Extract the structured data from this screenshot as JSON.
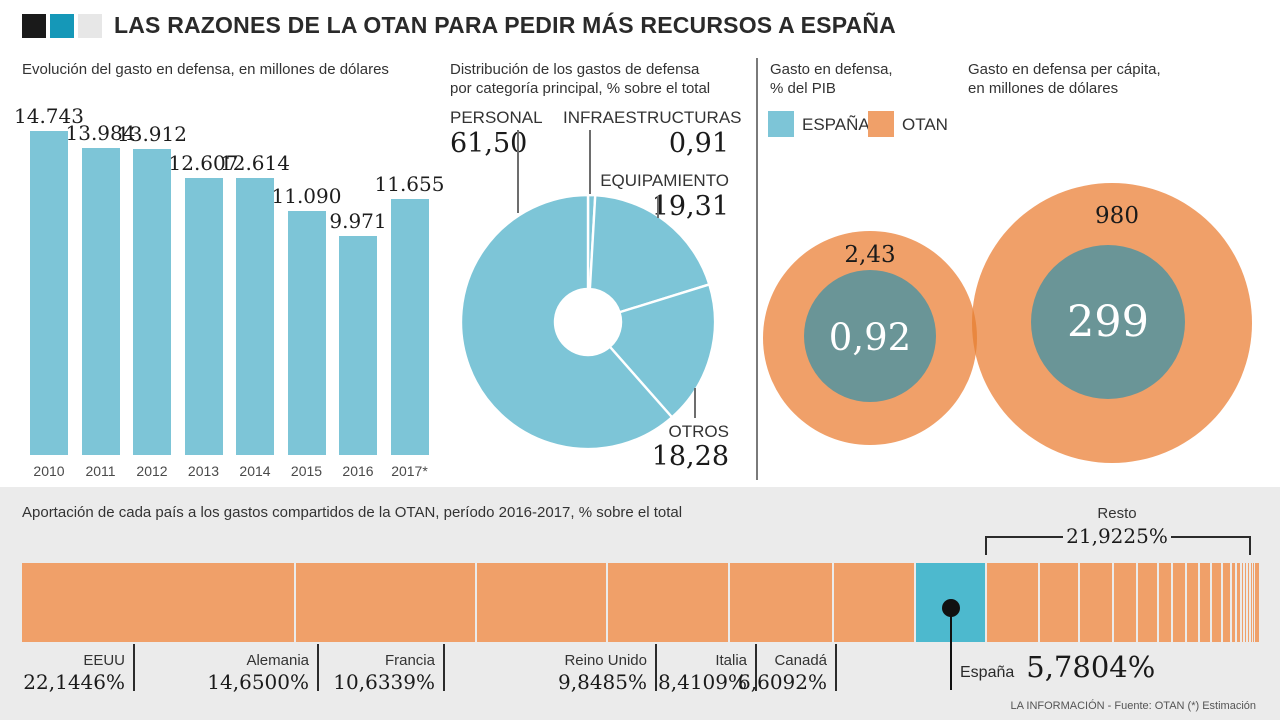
{
  "title": "LAS RAZONES DE LA OTAN PARA PEDIR MÁS RECURSOS A ESPAÑA",
  "colors": {
    "black_square": "#1a1a1a",
    "teal_square": "#1598b8",
    "gray_square": "#e7e7e7",
    "blue": "#7dc5d7",
    "espana_blue": "#4db9ce",
    "orange": "#f0a069",
    "orange_overlap": "#e9873f",
    "inner_circle": "#6a9597",
    "bottom_bg": "#ebebeb"
  },
  "sections": {
    "evolution": {
      "subtitle": "Evolución del gasto en defensa, en millones de dólares"
    },
    "distribution": {
      "subtitle_line1": "Distribución de los gastos de defensa",
      "subtitle_line2": "por categoría principal, % sobre el total"
    },
    "gdp": {
      "title_line1": "Gasto en defensa,",
      "title_line2": "% del PIB",
      "legend": [
        {
          "label": "ESPAÑA"
        },
        {
          "label": "OTAN"
        }
      ]
    },
    "percapita": {
      "title_line1": "Gasto en defensa per cápita,",
      "title_line2": "en millones de dólares"
    },
    "contribution": {
      "subtitle": "Aportación de cada país a los gastos compartidos de la OTAN, período 2016-2017, % sobre el total"
    }
  },
  "footer": "LA INFORMACIÓN - Fuente: OTAN (*) Estimación",
  "chart_data": [
    {
      "type": "bar",
      "title": "Evolución del gasto en defensa, en millones de dólares",
      "categories": [
        "2010",
        "2011",
        "2012",
        "2013",
        "2014",
        "2015",
        "2016",
        "2017*"
      ],
      "values": [
        14743,
        13984,
        13912,
        12607,
        12614,
        11090,
        9971,
        11655
      ],
      "value_labels": [
        "14.743",
        "13.984",
        "13.912",
        "12.607",
        "12.614",
        "11.090",
        "9.971",
        "11.655"
      ],
      "ylim": [
        0,
        14743
      ],
      "grid": false
    },
    {
      "type": "pie",
      "donut": true,
      "title": "Distribución de los gastos de defensa por categoría principal, % sobre el total",
      "labels": [
        "PERSONAL",
        "INFRAESTRUCTURAS",
        "EQUIPAMIENTO",
        "OTROS"
      ],
      "values": [
        61.5,
        0.91,
        19.31,
        18.28
      ],
      "value_labels": [
        "61,50",
        "0,91",
        "19,31",
        "18,28"
      ],
      "start_angle_deg": 0,
      "direction": "clockwise",
      "draw_order": [
        1,
        2,
        3,
        0
      ]
    },
    {
      "type": "bubble",
      "title": "Gasto en defensa, % del PIB",
      "series": [
        {
          "name": "OTAN",
          "value": 2.43,
          "value_label": "2,43"
        },
        {
          "name": "ESPAÑA",
          "value": 0.92,
          "value_label": "0,92"
        }
      ]
    },
    {
      "type": "bubble",
      "title": "Gasto en defensa per cápita, en millones de dólares",
      "series": [
        {
          "name": "OTAN",
          "value": 980,
          "value_label": "980"
        },
        {
          "name": "ESPAÑA",
          "value": 299,
          "value_label": "299"
        }
      ]
    },
    {
      "type": "bar",
      "subtype": "stacked-horizontal-100pct",
      "title": "Aportación de cada país a los gastos compartidos de la OTAN, período 2016-2017, % sobre el total",
      "categories": [
        "EEUU",
        "Alemania",
        "Francia",
        "Reino Unido",
        "Italia",
        "Canadá",
        "España",
        "Resto"
      ],
      "values": [
        22.1446,
        14.65,
        10.6339,
        9.8485,
        8.4109,
        6.6092,
        5.7804,
        21.9225
      ],
      "value_labels": [
        "22,1446%",
        "14,6500%",
        "10,6339%",
        "9,8485%",
        "8,4109%",
        "6,6092%",
        "5,7804%",
        "21,9225%"
      ],
      "resto_subsegments": [
        4.39,
        3.29,
        2.77,
        2.0,
        1.71,
        1.21,
        1.09,
        1.08,
        0.98,
        0.95,
        0.71,
        0.46,
        0.35,
        0.3,
        0.24,
        0.22,
        0.16,
        0.15,
        0.11,
        0.09,
        0.05,
        0.03
      ]
    }
  ]
}
